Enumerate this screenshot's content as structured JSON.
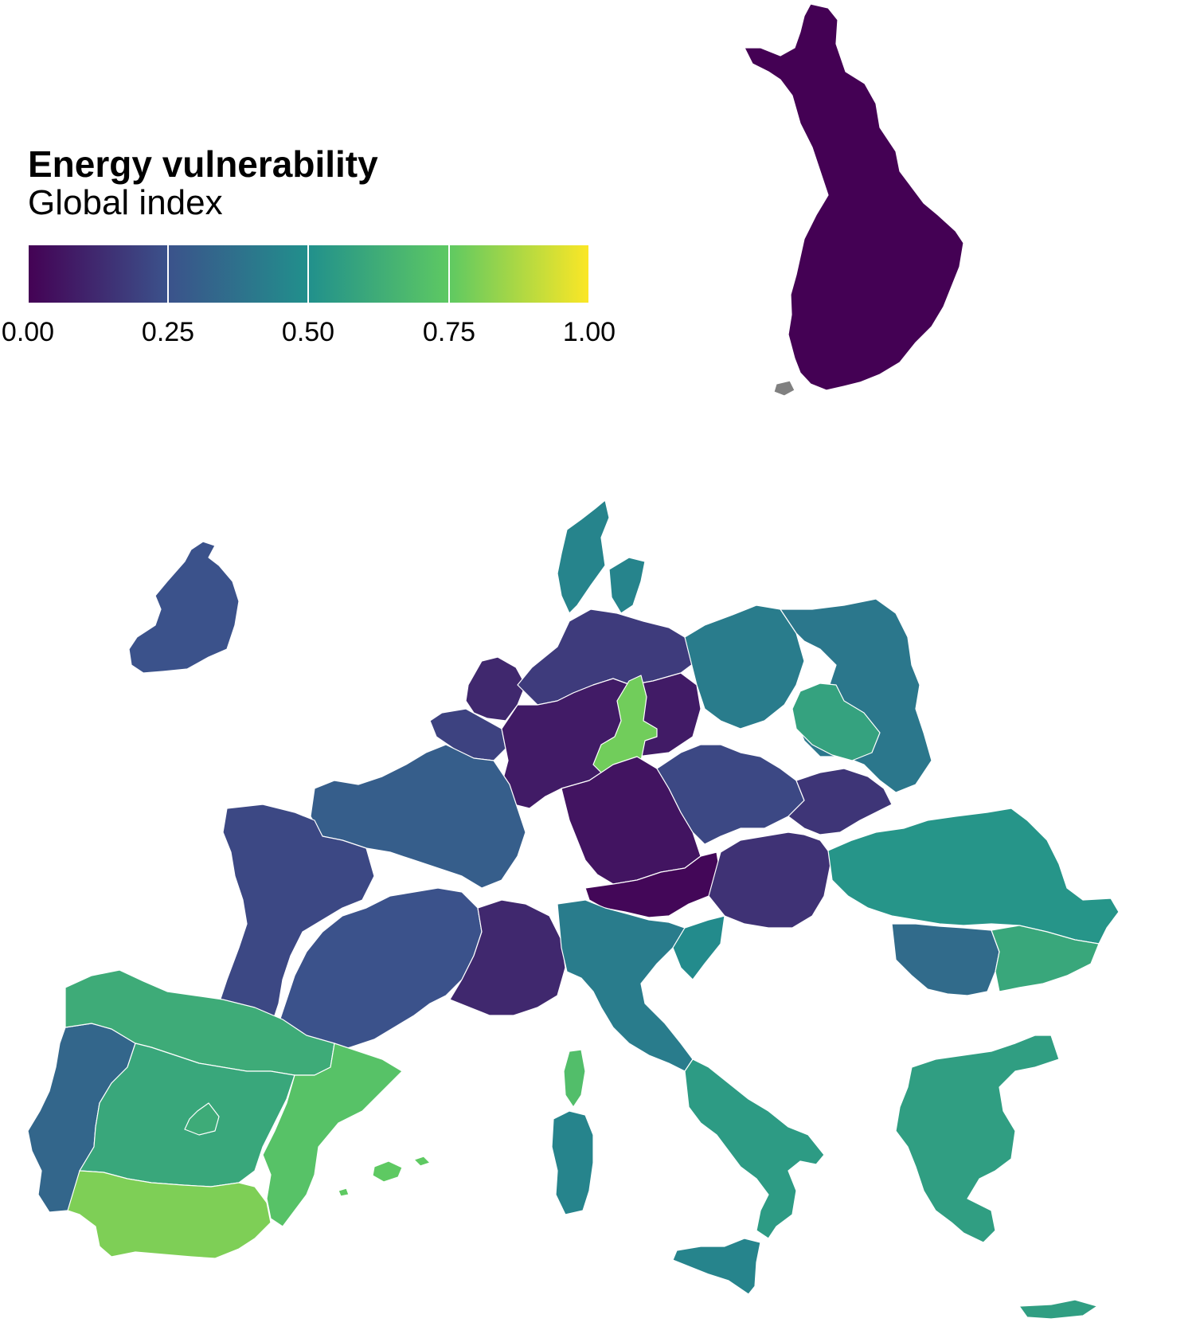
{
  "legend": {
    "title": "Energy vulnerability",
    "subtitle": "Global index",
    "gradient_colors": [
      "#440154",
      "#3b528b",
      "#21908c",
      "#5ec962",
      "#fde725"
    ],
    "ticks": [
      "0.00",
      "0.25",
      "0.50",
      "0.75",
      "1.00"
    ]
  },
  "map": {
    "color_scale": "viridis",
    "no_data_color": "#808080",
    "countries": [
      {
        "name": "finland",
        "value": 0.0
      },
      {
        "name": "ireland",
        "value": 0.25
      },
      {
        "name": "denmark",
        "value": 0.45
      },
      {
        "name": "netherlands",
        "value": 0.12
      },
      {
        "name": "belgium",
        "value": 0.2
      },
      {
        "name": "germany-north",
        "value": 0.18
      },
      {
        "name": "germany-central",
        "value": 0.08
      },
      {
        "name": "germany-east-highlight",
        "value": 0.78
      },
      {
        "name": "germany-south",
        "value": 0.06
      },
      {
        "name": "austria",
        "value": 0.02
      },
      {
        "name": "poland-west",
        "value": 0.42
      },
      {
        "name": "poland-east",
        "value": 0.4
      },
      {
        "name": "poland-central-highlight",
        "value": 0.58
      },
      {
        "name": "czechia",
        "value": 0.22
      },
      {
        "name": "slovakia",
        "value": 0.16
      },
      {
        "name": "hungary",
        "value": 0.15
      },
      {
        "name": "romania",
        "value": 0.52
      },
      {
        "name": "bulgaria",
        "value": 0.35
      },
      {
        "name": "bulgaria-east",
        "value": 0.6
      },
      {
        "name": "greece",
        "value": 0.56
      },
      {
        "name": "france-north",
        "value": 0.3
      },
      {
        "name": "france-west",
        "value": 0.22
      },
      {
        "name": "france-south",
        "value": 0.25
      },
      {
        "name": "france-southeast",
        "value": 0.12
      },
      {
        "name": "italy-north",
        "value": 0.42
      },
      {
        "name": "italy-south",
        "value": 0.55
      },
      {
        "name": "sicily",
        "value": 0.45
      },
      {
        "name": "sardinia",
        "value": 0.45
      },
      {
        "name": "corsica",
        "value": 0.7
      },
      {
        "name": "portugal",
        "value": 0.33
      },
      {
        "name": "spain-north",
        "value": 0.62
      },
      {
        "name": "spain-central",
        "value": 0.6
      },
      {
        "name": "spain-east",
        "value": 0.72
      },
      {
        "name": "spain-south",
        "value": 0.8
      },
      {
        "name": "balearic-islands",
        "value": 0.75
      },
      {
        "name": "slovenia-croatia",
        "value": 0.48
      }
    ]
  }
}
